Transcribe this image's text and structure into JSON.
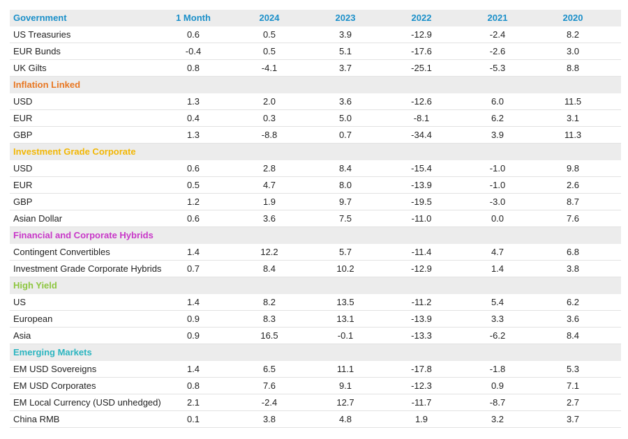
{
  "table": {
    "columns": [
      "1 Month",
      "2024",
      "2023",
      "2022",
      "2021",
      "2020"
    ],
    "sections": [
      {
        "title": "Government",
        "color": "#1a8fc9",
        "rows": [
          {
            "label": "US Treasuries",
            "values": [
              "0.6",
              "0.5",
              "3.9",
              "-12.9",
              "-2.4",
              "8.2"
            ]
          },
          {
            "label": "EUR Bunds",
            "values": [
              "-0.4",
              "0.5",
              "5.1",
              "-17.6",
              "-2.6",
              "3.0"
            ]
          },
          {
            "label": "UK Gilts",
            "values": [
              "0.8",
              "-4.1",
              "3.7",
              "-25.1",
              "-5.3",
              "8.8"
            ]
          }
        ]
      },
      {
        "title": "Inflation Linked",
        "color": "#e87722",
        "rows": [
          {
            "label": "USD",
            "values": [
              "1.3",
              "2.0",
              "3.6",
              "-12.6",
              "6.0",
              "11.5"
            ]
          },
          {
            "label": "EUR",
            "values": [
              "0.4",
              "0.3",
              "5.0",
              "-8.1",
              "6.2",
              "3.1"
            ]
          },
          {
            "label": "GBP",
            "values": [
              "1.3",
              "-8.8",
              "0.7",
              "-34.4",
              "3.9",
              "11.3"
            ]
          }
        ]
      },
      {
        "title": "Investment Grade Corporate",
        "color": "#f2b705",
        "rows": [
          {
            "label": "USD",
            "values": [
              "0.6",
              "2.8",
              "8.4",
              "-15.4",
              "-1.0",
              "9.8"
            ]
          },
          {
            "label": "EUR",
            "values": [
              "0.5",
              "4.7",
              "8.0",
              "-13.9",
              "-1.0",
              "2.6"
            ]
          },
          {
            "label": "GBP",
            "values": [
              "1.2",
              "1.9",
              "9.7",
              "-19.5",
              "-3.0",
              "8.7"
            ]
          },
          {
            "label": "Asian Dollar",
            "values": [
              "0.6",
              "3.6",
              "7.5",
              "-11.0",
              "0.0",
              "7.6"
            ]
          }
        ]
      },
      {
        "title": "Financial and Corporate Hybrids",
        "color": "#c837c8",
        "rows": [
          {
            "label": "Contingent Convertibles",
            "values": [
              "1.4",
              "12.2",
              "5.7",
              "-11.4",
              "4.7",
              "6.8"
            ]
          },
          {
            "label": "Investment Grade Corporate Hybrids",
            "values": [
              "0.7",
              "8.4",
              "10.2",
              "-12.9",
              "1.4",
              "3.8"
            ]
          }
        ]
      },
      {
        "title": "High Yield",
        "color": "#8dc63f",
        "rows": [
          {
            "label": "US",
            "values": [
              "1.4",
              "8.2",
              "13.5",
              "-11.2",
              "5.4",
              "6.2"
            ]
          },
          {
            "label": "European",
            "values": [
              "0.9",
              "8.3",
              "13.1",
              "-13.9",
              "3.3",
              "3.6"
            ]
          },
          {
            "label": "Asia",
            "values": [
              "0.9",
              "16.5",
              "-0.1",
              "-13.3",
              "-6.2",
              "8.4"
            ]
          }
        ]
      },
      {
        "title": "Emerging Markets",
        "color": "#2bb5c0",
        "rows": [
          {
            "label": "EM USD Sovereigns",
            "values": [
              "1.4",
              "6.5",
              "11.1",
              "-17.8",
              "-1.8",
              "5.3"
            ]
          },
          {
            "label": "EM USD Corporates",
            "values": [
              "0.8",
              "7.6",
              "9.1",
              "-12.3",
              "0.9",
              "7.1"
            ]
          },
          {
            "label": "EM Local Currency (USD unhedged)",
            "values": [
              "2.1",
              "-2.4",
              "12.7",
              "-11.7",
              "-8.7",
              "2.7"
            ]
          },
          {
            "label": "China RMB",
            "values": [
              "0.1",
              "3.8",
              "4.8",
              "1.9",
              "3.2",
              "3.7"
            ]
          }
        ]
      }
    ]
  }
}
